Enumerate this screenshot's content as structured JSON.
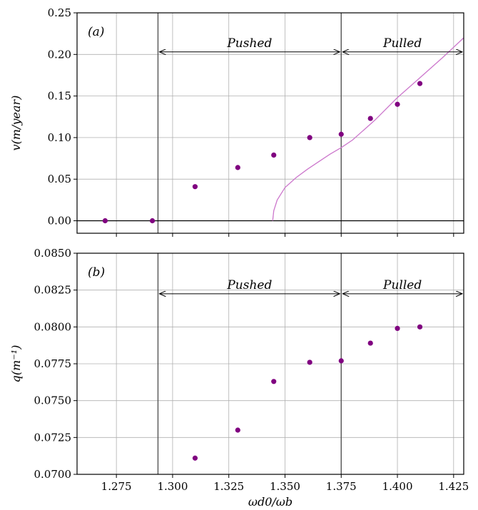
{
  "chart_data": [
    {
      "type": "scatter",
      "panel_label": "(a)",
      "ylabel": "v(m/year)",
      "xlabel": "",
      "xlim": [
        1.2575,
        1.4295
      ],
      "ylim": [
        -0.015,
        0.25
      ],
      "xticks": [
        1.275,
        1.3,
        1.325,
        1.35,
        1.375,
        1.4,
        1.425
      ],
      "xtick_labels_visible": false,
      "yticks": [
        0.0,
        0.05,
        0.1,
        0.15,
        0.2,
        0.25
      ],
      "ytick_labels": [
        "0.00",
        "0.05",
        "0.10",
        "0.15",
        "0.20",
        "0.25"
      ],
      "grid": true,
      "series": [
        {
          "kind": "scatter",
          "color": "#800080",
          "x": [
            1.27,
            1.291,
            1.31,
            1.329,
            1.345,
            1.361,
            1.375,
            1.388,
            1.4,
            1.41
          ],
          "y": [
            0.0,
            0.0,
            0.041,
            0.064,
            0.079,
            0.1,
            0.104,
            0.123,
            0.14,
            0.165
          ]
        },
        {
          "kind": "line",
          "color": "#cc77cc",
          "x": [
            1.3445,
            1.345,
            1.3465,
            1.35,
            1.355,
            1.36,
            1.365,
            1.37,
            1.375,
            1.38,
            1.39,
            1.4,
            1.41,
            1.42,
            1.4295
          ],
          "y": [
            0.0,
            0.012,
            0.025,
            0.04,
            0.052,
            0.062,
            0.071,
            0.08,
            0.088,
            0.097,
            0.121,
            0.148,
            0.172,
            0.196,
            0.22
          ]
        }
      ],
      "hlines": [
        0.0
      ],
      "vlines": [
        1.2935,
        1.375
      ],
      "annotations": [
        {
          "text": "Pushed",
          "x_from": 1.2935,
          "x_to": 1.375,
          "y": 0.203
        },
        {
          "text": "Pulled",
          "x_from": 1.375,
          "x_to": 1.4295,
          "y": 0.203
        }
      ]
    },
    {
      "type": "scatter",
      "panel_label": "(b)",
      "ylabel": "q(m⁻¹)",
      "xlabel": "ωd0/ωb",
      "xlim": [
        1.2575,
        1.4295
      ],
      "ylim": [
        0.07,
        0.085
      ],
      "xticks": [
        1.275,
        1.3,
        1.325,
        1.35,
        1.375,
        1.4,
        1.425
      ],
      "xtick_labels": [
        "1.275",
        "1.300",
        "1.325",
        "1.350",
        "1.375",
        "1.400",
        "1.425"
      ],
      "yticks": [
        0.07,
        0.0725,
        0.075,
        0.0775,
        0.08,
        0.0825,
        0.085
      ],
      "ytick_labels": [
        "0.0700",
        "0.0725",
        "0.0750",
        "0.0775",
        "0.0800",
        "0.0825",
        "0.0850"
      ],
      "grid": true,
      "series": [
        {
          "kind": "scatter",
          "color": "#800080",
          "x": [
            1.31,
            1.329,
            1.345,
            1.361,
            1.375,
            1.388,
            1.4,
            1.41
          ],
          "y": [
            0.0711,
            0.073,
            0.0763,
            0.0776,
            0.0777,
            0.0789,
            0.0799,
            0.08
          ]
        }
      ],
      "vlines": [
        1.2935,
        1.375
      ],
      "annotations": [
        {
          "text": "Pushed",
          "x_from": 1.2935,
          "x_to": 1.375,
          "y": 0.08225
        },
        {
          "text": "Pulled",
          "x_from": 1.375,
          "x_to": 1.4295,
          "y": 0.08225
        }
      ]
    }
  ]
}
